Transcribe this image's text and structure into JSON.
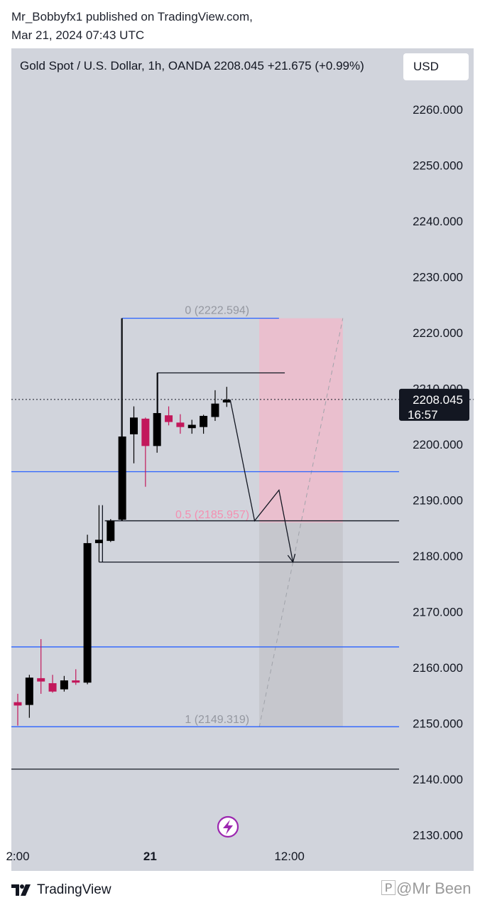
{
  "header": {
    "publisher_line": "Mr_Bobbyfx1 published on TradingView.com,",
    "date_line": "Mar 21, 2024 07:43 UTC"
  },
  "symbol_bar": {
    "text": "Gold Spot / U.S. Dollar, 1h, OANDA  2208.045  +21.675 (+0.99%)",
    "currency": "USD"
  },
  "footer": {
    "brand": "TradingView",
    "watermark": "🄿@Mr Been"
  },
  "colors": {
    "background": "#d1d4dc",
    "up_candle": "#000000",
    "down_candle": "#c2185b",
    "horizontal_line": "#2962ff",
    "fib_upper_zone": "#f2b8c9",
    "fib_lower_zone": "#c4c5cb",
    "fib_label": "#9598a1",
    "fib_mid_label": "#f48fb1",
    "alert_icon": "#9c27b0"
  },
  "chart_data": {
    "type": "candlestick",
    "symbol": "Gold Spot / U.S. Dollar",
    "timeframe": "1h",
    "exchange": "OANDA",
    "last_price": "2208.045",
    "countdown": "16:57",
    "ylim": [
      2125,
      2268
    ],
    "y_ticks": [
      "2260.000",
      "2250.000",
      "2240.000",
      "2230.000",
      "2220.000",
      "2210.000",
      "2200.000",
      "2190.000",
      "2180.000",
      "2170.000",
      "2160.000",
      "2150.000",
      "2140.000",
      "2130.000"
    ],
    "x_tick_labels": [
      {
        "label": "2:00",
        "bold": false,
        "bar": 0
      },
      {
        "label": "21",
        "bold": true,
        "bar": 11.4
      },
      {
        "label": "12:00",
        "bold": false,
        "bar": 23.4
      }
    ],
    "candles": [
      {
        "bar": 0,
        "open": 2153.8,
        "high": 2155.3,
        "low": 2149.6,
        "close": 2153.2
      },
      {
        "bar": 1,
        "open": 2153.3,
        "high": 2158.7,
        "low": 2151.0,
        "close": 2158.2
      },
      {
        "bar": 2,
        "open": 2158.1,
        "high": 2165.1,
        "low": 2155.3,
        "close": 2157.5
      },
      {
        "bar": 3,
        "open": 2157.2,
        "high": 2158.7,
        "low": 2155.5,
        "close": 2155.7
      },
      {
        "bar": 4,
        "open": 2156.1,
        "high": 2158.5,
        "low": 2155.7,
        "close": 2157.7
      },
      {
        "bar": 5,
        "open": 2157.7,
        "high": 2159.7,
        "low": 2156.9,
        "close": 2157.3
      },
      {
        "bar": 6,
        "open": 2157.3,
        "high": 2183.8,
        "low": 2157.0,
        "close": 2182.3
      },
      {
        "bar": 7,
        "open": 2182.3,
        "high": 2189.1,
        "low": 2178.9,
        "close": 2182.9
      },
      {
        "bar": 8,
        "open": 2182.7,
        "high": 2186.6,
        "low": 2182.5,
        "close": 2186.3
      },
      {
        "bar": 9,
        "open": 2186.5,
        "high": 2222.6,
        "low": 2186.3,
        "close": 2201.4
      },
      {
        "bar": 10,
        "open": 2201.8,
        "high": 2206.8,
        "low": 2196.6,
        "close": 2204.8
      },
      {
        "bar": 11,
        "open": 2204.6,
        "high": 2204.8,
        "low": 2192.4,
        "close": 2199.7
      },
      {
        "bar": 12,
        "open": 2199.7,
        "high": 2212.8,
        "low": 2198.5,
        "close": 2205.6
      },
      {
        "bar": 13,
        "open": 2205.2,
        "high": 2206.8,
        "low": 2203.4,
        "close": 2204.0
      },
      {
        "bar": 14,
        "open": 2203.9,
        "high": 2205.4,
        "low": 2201.9,
        "close": 2203.1
      },
      {
        "bar": 15,
        "open": 2202.9,
        "high": 2204.4,
        "low": 2201.9,
        "close": 2203.5
      },
      {
        "bar": 16,
        "open": 2203.1,
        "high": 2205.3,
        "low": 2201.9,
        "close": 2205.1
      },
      {
        "bar": 17,
        "open": 2204.9,
        "high": 2209.7,
        "low": 2204.2,
        "close": 2207.3
      },
      {
        "bar": 18,
        "open": 2207.5,
        "high": 2210.3,
        "low": 2206.7,
        "close": 2208.0
      }
    ],
    "horizontal_lines": [
      {
        "price": 2222.594,
        "color": "#2962ff",
        "from_bar": 9,
        "to_bar": 22.5
      },
      {
        "price": 2195.1,
        "color": "#2962ff",
        "from_bar": -1,
        "to_bar": "end"
      },
      {
        "price": 2163.7,
        "color": "#2962ff",
        "from_bar": -1,
        "to_bar": "end"
      },
      {
        "price": 2149.4,
        "color": "#2962ff",
        "from_bar": -1,
        "to_bar": "end"
      },
      {
        "price": 2141.8,
        "color": "#131722",
        "from_bar": -1,
        "to_bar": "end"
      }
    ],
    "rays": [
      {
        "price": 2212.8,
        "from_bar": 12,
        "to_bar": 23
      },
      {
        "price": 2186.3,
        "from_bar": 7.5,
        "to_bar": "end"
      },
      {
        "price": 2178.9,
        "from_bar": 7,
        "to_bar": "end"
      }
    ],
    "fib_retracement": {
      "from_bar": 20.8,
      "to_bar": 28,
      "levels": [
        {
          "label": "0 (2222.594)",
          "price": 2222.594
        },
        {
          "label": "0.5 (2185.957)",
          "price": 2185.957
        },
        {
          "label": "1 (2149.319)",
          "price": 2149.319
        }
      ]
    },
    "projection_path": [
      {
        "bar": 18.3,
        "price": 2208.0
      },
      {
        "bar": 20.4,
        "price": 2186.3
      },
      {
        "bar": 22.5,
        "price": 2191.8
      },
      {
        "bar": 23.7,
        "price": 2178.9
      }
    ]
  }
}
